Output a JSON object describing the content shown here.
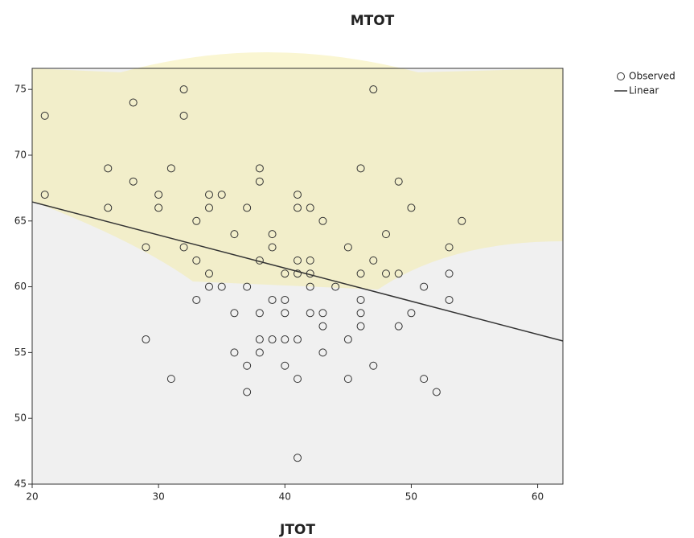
{
  "chart_data": {
    "type": "scatter",
    "title": "MTOT",
    "x_label": "JTOT",
    "xlim": [
      20,
      62
    ],
    "ylim": [
      45,
      76.6
    ],
    "xticks": [
      20,
      30,
      40,
      50,
      60
    ],
    "yticks": [
      45,
      50,
      55,
      60,
      65,
      70,
      75
    ],
    "grid": false,
    "legend": "right-top",
    "background": "#f0f0f0",
    "series": [
      {
        "name": "Observed",
        "type": "scatter",
        "color": "#333333",
        "x": [
          21,
          21,
          26,
          26,
          28,
          28,
          29,
          29,
          30,
          30,
          31,
          31,
          32,
          32,
          32,
          33,
          33,
          33,
          34,
          34,
          34,
          34,
          35,
          35,
          36,
          36,
          36,
          37,
          37,
          37,
          37,
          38,
          38,
          38,
          38,
          38,
          38,
          39,
          39,
          39,
          39,
          40,
          40,
          40,
          40,
          40,
          41,
          41,
          41,
          41,
          41,
          41,
          41,
          42,
          42,
          42,
          42,
          42,
          43,
          43,
          43,
          43,
          44,
          45,
          45,
          45,
          46,
          46,
          46,
          46,
          46,
          47,
          47,
          47,
          48,
          48,
          49,
          49,
          49,
          50,
          50,
          51,
          51,
          52,
          53,
          53,
          53,
          54
        ],
        "values": [
          73,
          67,
          69,
          66,
          74,
          68,
          63,
          56,
          67,
          66,
          69,
          53,
          75,
          73,
          63,
          65,
          62,
          59,
          67,
          66,
          61,
          60,
          67,
          60,
          64,
          58,
          55,
          66,
          60,
          54,
          52,
          69,
          68,
          62,
          58,
          56,
          55,
          64,
          63,
          59,
          56,
          61,
          59,
          58,
          56,
          54,
          67,
          66,
          62,
          61,
          56,
          53,
          47,
          66,
          62,
          61,
          60,
          58,
          65,
          58,
          57,
          55,
          60,
          63,
          56,
          53,
          69,
          61,
          59,
          58,
          57,
          75,
          62,
          54,
          64,
          61,
          68,
          61,
          57,
          66,
          58,
          60,
          53,
          52,
          63,
          61,
          59,
          65
        ]
      },
      {
        "name": "Linear",
        "type": "line",
        "color": "#333333",
        "x": [
          20,
          62
        ],
        "values": [
          66.45,
          55.88
        ]
      }
    ]
  }
}
